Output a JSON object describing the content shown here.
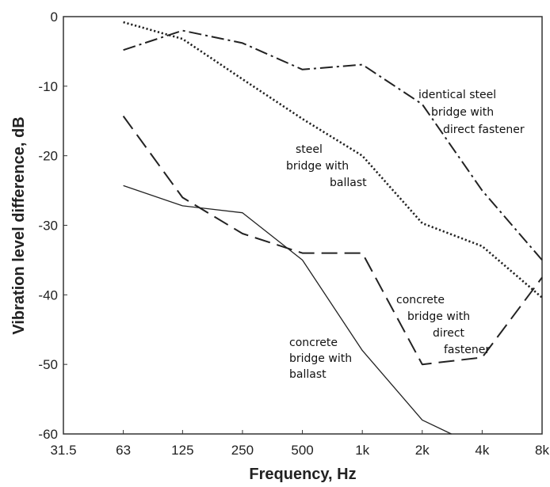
{
  "chart_data": {
    "type": "line",
    "title": "",
    "xlabel": "Frequency, Hz",
    "ylabel": "Vibration level difference, dB",
    "x_scale": "log2",
    "x_ticks": [
      31.5,
      63,
      125,
      250,
      500,
      1000,
      2000,
      4000,
      8000
    ],
    "x_tick_labels": [
      "31.5",
      "63",
      "125",
      "250",
      "500",
      "1k",
      "2k",
      "4k",
      "8k"
    ],
    "xlim": [
      31.5,
      8000
    ],
    "ylim": [
      -60,
      0
    ],
    "y_ticks": [
      0,
      -10,
      -20,
      -30,
      -40,
      -50,
      -60
    ],
    "y_tick_labels": [
      "0",
      "-10",
      "-20",
      "-30",
      "-40",
      "-50",
      "-60"
    ],
    "grid": false,
    "legend": "none",
    "series": [
      {
        "line_style": "dash-dot",
        "x": [
          63,
          125,
          250,
          500,
          1000,
          2000,
          4000,
          8000
        ],
        "y": [
          -4.8,
          -2.0,
          -3.8,
          -7.6,
          -6.9,
          -12.6,
          -25.0,
          -35.0
        ]
      },
      {
        "line_style": "dotted",
        "x": [
          63,
          125,
          250,
          500,
          1000,
          2000,
          4000,
          8000
        ],
        "y": [
          -0.8,
          -3.2,
          -9.0,
          -14.7,
          -20.0,
          -29.7,
          -33.0,
          -40.4
        ]
      },
      {
        "line_style": "dashed",
        "x": [
          63,
          125,
          250,
          500,
          1000,
          2000,
          4000,
          8000
        ],
        "y": [
          -14.3,
          -26.0,
          -31.2,
          -34.0,
          -34.0,
          -50.0,
          -49.0,
          -37.5
        ]
      },
      {
        "line_style": "solid",
        "x": [
          63,
          125,
          250,
          500,
          1000,
          2000,
          2800
        ],
        "y": [
          -24.3,
          -27.2,
          -28.2,
          -35.0,
          -48.0,
          -58.0,
          -60.0
        ]
      }
    ],
    "annotations": [
      {
        "lines": [
          "identical steel",
          "bridge with",
          "direct fastener"
        ]
      },
      {
        "lines": [
          "steel",
          "bridge with",
          "ballast"
        ]
      },
      {
        "lines": [
          "concrete",
          "bridge with",
          "direct",
          "fastener"
        ]
      },
      {
        "lines": [
          "concrete",
          "bridge with",
          "ballast"
        ]
      }
    ]
  }
}
